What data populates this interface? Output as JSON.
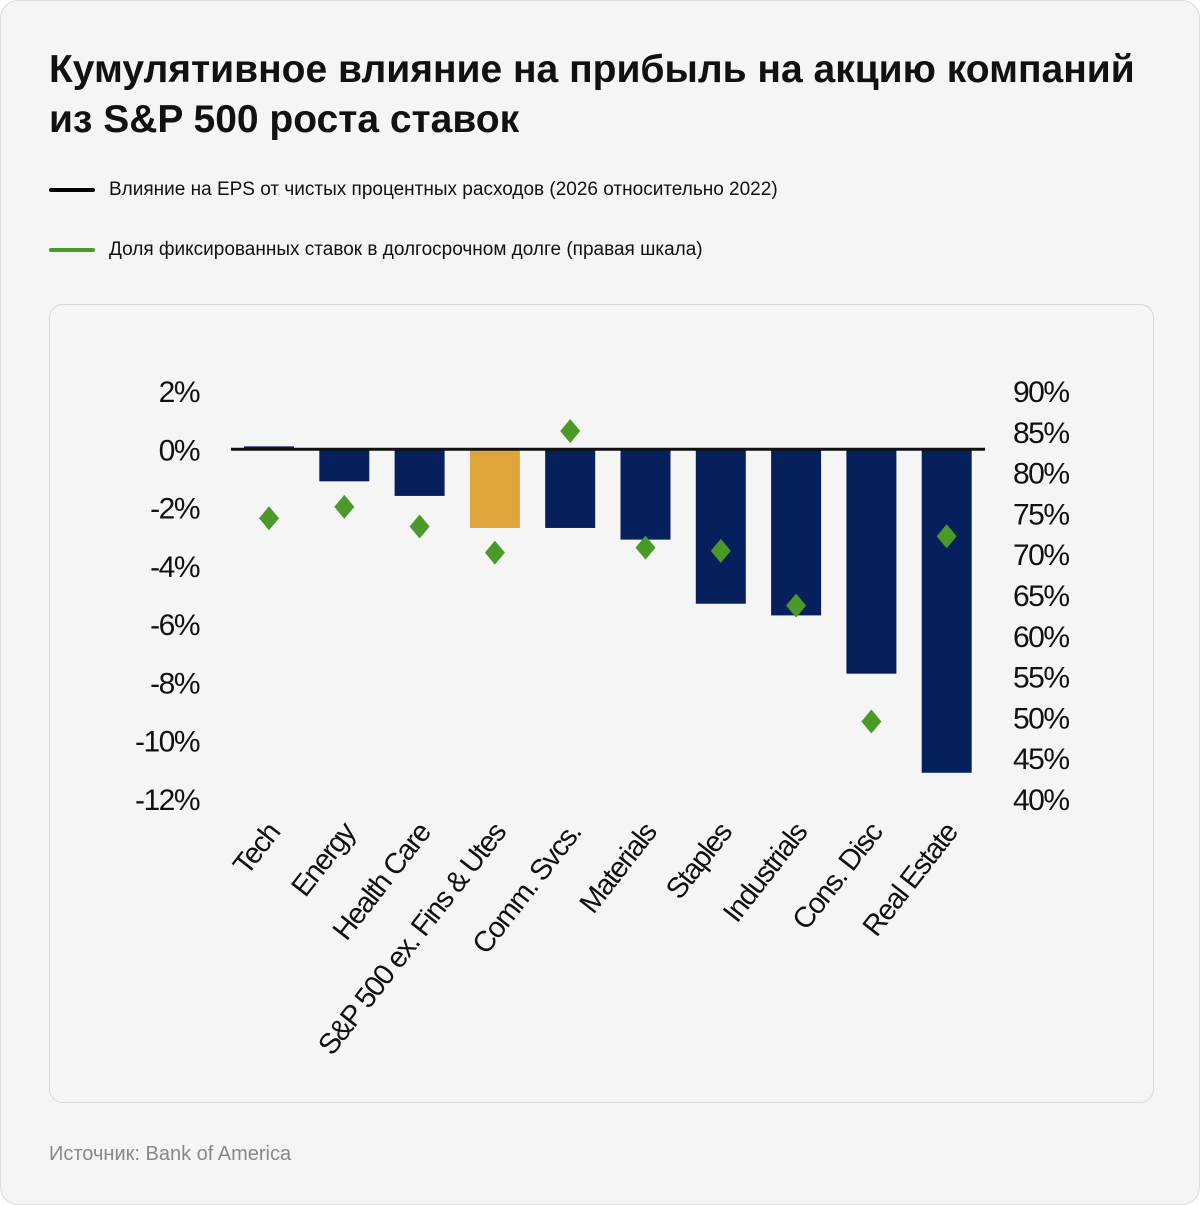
{
  "title": "Кумулятивное влияние на прибыль на акцию компаний из S&P 500 роста ставок",
  "legend": [
    {
      "label": "Влияние на EPS от чистых процентных расходов (2026 относительно 2022)",
      "color": "#000000"
    },
    {
      "label": "Доля фиксированных ставок в долгосрочном долге (правая шкала)",
      "color": "#4a9a2a"
    }
  ],
  "source": "Источник: Bank of America",
  "chart_data": {
    "type": "bar",
    "categories": [
      "Tech",
      "Energy",
      "Health Care",
      "S&P 500 ex. Fins & Utes",
      "Comm. Svcs.",
      "Materials",
      "Staples",
      "Industrials",
      "Cons. Disc",
      "Real Estate"
    ],
    "series": [
      {
        "name": "Влияние на EPS от чистых процентных расходов (2026 относительно 2022)",
        "axis": "left",
        "type": "bar",
        "values": [
          0.1,
          -1.1,
          -1.6,
          -2.7,
          -2.7,
          -3.1,
          -5.3,
          -5.7,
          -7.7,
          -11.1
        ]
      },
      {
        "name": "Доля фиксированных ставок в долгосрочном долге (правая шкала)",
        "axis": "right",
        "type": "scatter",
        "values": [
          74.4,
          75.8,
          73.4,
          70.2,
          85.1,
          70.8,
          70.4,
          63.7,
          49.5,
          72.2
        ]
      }
    ],
    "highlight_index": 3,
    "colors": {
      "bar": "#06205e",
      "highlight": "#dfa43a",
      "marker": "#4a9a2a",
      "zero": "#111111"
    },
    "yleft": {
      "lim": [
        -12,
        2
      ],
      "ticks": [
        "2%",
        "0%",
        "-2%",
        "-4%",
        "-6%",
        "-8%",
        "-10%",
        "-12%"
      ],
      "tick_values": [
        2,
        0,
        -2,
        -4,
        -6,
        -8,
        -10,
        -12
      ]
    },
    "yright": {
      "lim": [
        40,
        90
      ],
      "ticks": [
        "90%",
        "85%",
        "80%",
        "75%",
        "70%",
        "65%",
        "60%",
        "55%",
        "50%",
        "45%",
        "40%"
      ],
      "tick_values": [
        90,
        85,
        80,
        75,
        70,
        65,
        60,
        55,
        50,
        45,
        40
      ]
    },
    "grid": false,
    "legend_position": "top-left"
  }
}
